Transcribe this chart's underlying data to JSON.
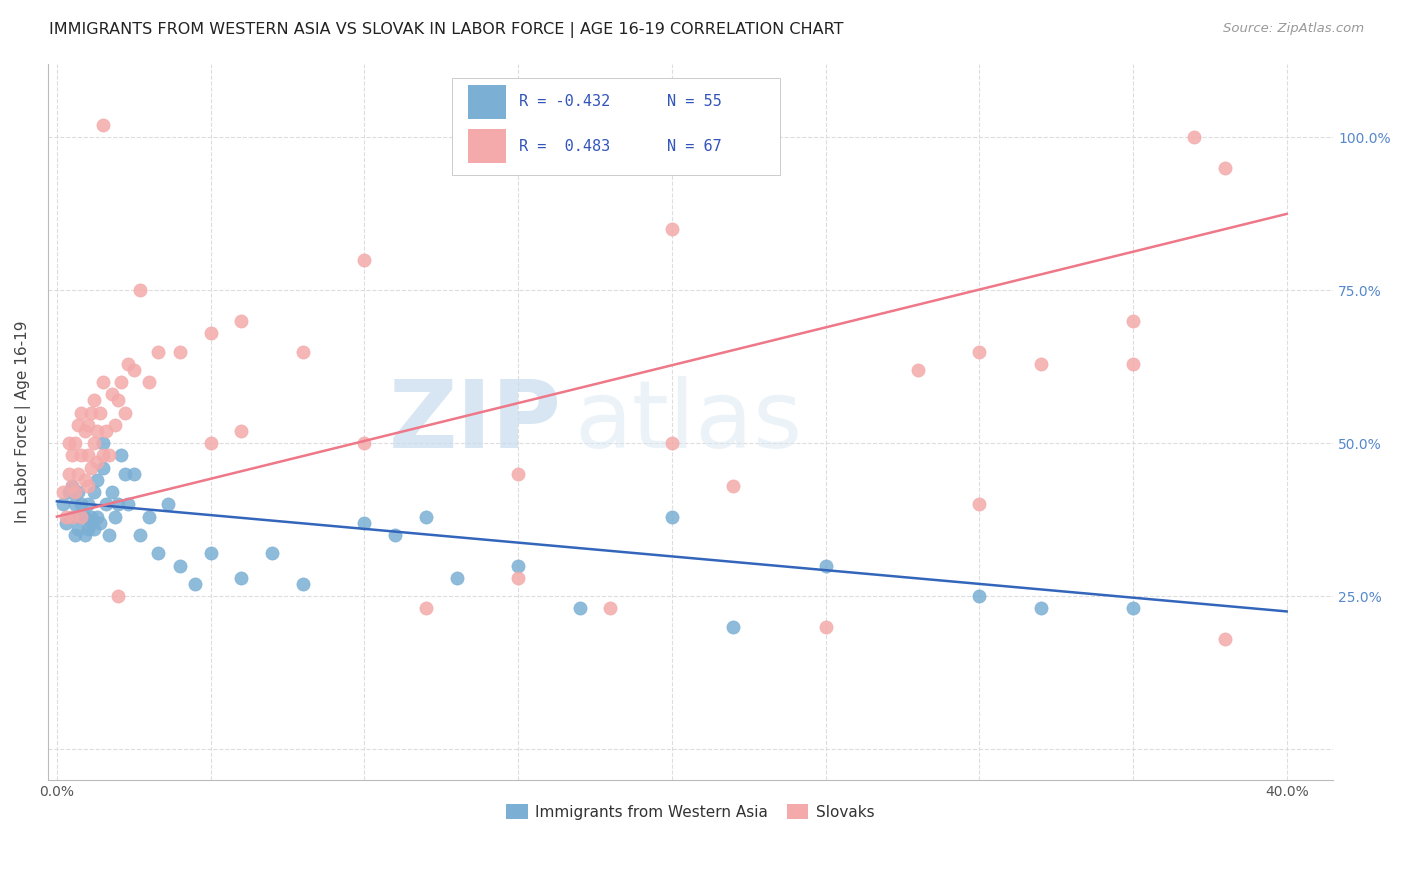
{
  "title": "IMMIGRANTS FROM WESTERN ASIA VS SLOVAK IN LABOR FORCE | AGE 16-19 CORRELATION CHART",
  "source": "Source: ZipAtlas.com",
  "ylabel": "In Labor Force | Age 16-19",
  "xlim_min": -0.003,
  "xlim_max": 0.415,
  "ylim_min": -0.05,
  "ylim_max": 1.12,
  "ytick_values": [
    0.0,
    0.25,
    0.5,
    0.75,
    1.0
  ],
  "ytick_labels": [
    "",
    "25.0%",
    "50.0%",
    "75.0%",
    "100.0%"
  ],
  "xtick_values": [
    0.0,
    0.05,
    0.1,
    0.15,
    0.2,
    0.25,
    0.3,
    0.35,
    0.4
  ],
  "xtick_labels": [
    "0.0%",
    "",
    "",
    "",
    "",
    "",
    "",
    "",
    "40.0%"
  ],
  "legend_label1": "Immigrants from Western Asia",
  "legend_label2": "Slovaks",
  "r1": "-0.432",
  "n1": "55",
  "r2": "0.483",
  "n2": "67",
  "color_blue": "#7BAFD4",
  "color_pink": "#F4AAAA",
  "line_blue": "#3366BB",
  "line_pink": "#EE7788",
  "background_color": "#FFFFFF",
  "grid_color": "#DDDDDD",
  "watermark_zip": "ZIP",
  "watermark_atlas": "atlas",
  "right_tick_color": "#5588CC",
  "blue_x": [
    0.002,
    0.003,
    0.004,
    0.005,
    0.005,
    0.006,
    0.006,
    0.007,
    0.007,
    0.008,
    0.008,
    0.009,
    0.009,
    0.01,
    0.01,
    0.011,
    0.011,
    0.012,
    0.012,
    0.013,
    0.013,
    0.014,
    0.015,
    0.015,
    0.016,
    0.017,
    0.018,
    0.019,
    0.02,
    0.021,
    0.022,
    0.023,
    0.025,
    0.027,
    0.03,
    0.033,
    0.036,
    0.04,
    0.045,
    0.05,
    0.06,
    0.07,
    0.08,
    0.1,
    0.11,
    0.12,
    0.13,
    0.15,
    0.17,
    0.2,
    0.22,
    0.25,
    0.3,
    0.32,
    0.35
  ],
  "blue_y": [
    0.4,
    0.37,
    0.42,
    0.38,
    0.43,
    0.35,
    0.4,
    0.36,
    0.42,
    0.38,
    0.4,
    0.35,
    0.38,
    0.36,
    0.4,
    0.37,
    0.38,
    0.36,
    0.42,
    0.38,
    0.44,
    0.37,
    0.5,
    0.46,
    0.4,
    0.35,
    0.42,
    0.38,
    0.4,
    0.48,
    0.45,
    0.4,
    0.45,
    0.35,
    0.38,
    0.32,
    0.4,
    0.3,
    0.27,
    0.32,
    0.28,
    0.32,
    0.27,
    0.37,
    0.35,
    0.38,
    0.28,
    0.3,
    0.23,
    0.38,
    0.2,
    0.3,
    0.25,
    0.23,
    0.23
  ],
  "pink_x": [
    0.002,
    0.003,
    0.004,
    0.004,
    0.005,
    0.005,
    0.006,
    0.006,
    0.007,
    0.007,
    0.008,
    0.008,
    0.009,
    0.009,
    0.01,
    0.01,
    0.011,
    0.011,
    0.012,
    0.012,
    0.013,
    0.013,
    0.014,
    0.015,
    0.015,
    0.016,
    0.017,
    0.018,
    0.019,
    0.02,
    0.021,
    0.022,
    0.023,
    0.025,
    0.027,
    0.03,
    0.033,
    0.04,
    0.05,
    0.06,
    0.08,
    0.1,
    0.12,
    0.15,
    0.18,
    0.2,
    0.22,
    0.25,
    0.28,
    0.3,
    0.32,
    0.35,
    0.37,
    0.38,
    0.06,
    0.015,
    0.01,
    0.05,
    0.2,
    0.3,
    0.35,
    0.38,
    0.1,
    0.15,
    0.02,
    0.005,
    0.008
  ],
  "pink_y": [
    0.42,
    0.38,
    0.45,
    0.5,
    0.43,
    0.48,
    0.42,
    0.5,
    0.45,
    0.53,
    0.48,
    0.55,
    0.44,
    0.52,
    0.48,
    0.53,
    0.46,
    0.55,
    0.5,
    0.57,
    0.52,
    0.47,
    0.55,
    0.48,
    0.6,
    0.52,
    0.48,
    0.58,
    0.53,
    0.57,
    0.6,
    0.55,
    0.63,
    0.62,
    0.75,
    0.6,
    0.65,
    0.65,
    0.68,
    0.52,
    0.65,
    0.5,
    0.23,
    0.45,
    0.23,
    0.5,
    0.43,
    0.2,
    0.62,
    0.65,
    0.63,
    0.63,
    1.0,
    0.95,
    0.7,
    1.02,
    0.43,
    0.5,
    0.85,
    0.4,
    0.7,
    0.18,
    0.8,
    0.28,
    0.25,
    0.38,
    0.38
  ]
}
